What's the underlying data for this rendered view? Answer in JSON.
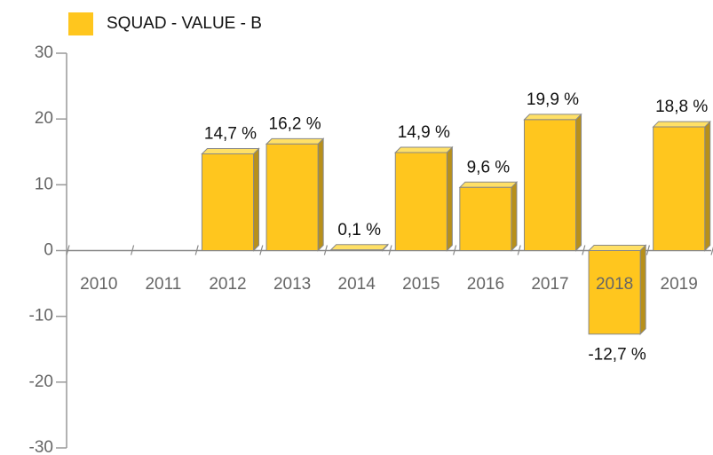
{
  "chart_data": {
    "type": "bar",
    "categories": [
      "2010",
      "2011",
      "2012",
      "2013",
      "2014",
      "2015",
      "2016",
      "2017",
      "2018",
      "2019"
    ],
    "series": [
      {
        "name": "SQUAD - VALUE - B",
        "color": "#ffc61e",
        "values": [
          null,
          null,
          14.7,
          16.2,
          0.1,
          14.9,
          9.6,
          19.9,
          -12.7,
          18.8
        ],
        "value_labels": [
          null,
          null,
          "14,7 %",
          "16,2 %",
          "0,1 %",
          "14,9 %",
          "9,6 %",
          "19,9 %",
          "-12,7 %",
          "18,8 %"
        ]
      }
    ],
    "ylim": [
      -30,
      30
    ],
    "yticks": [
      -30,
      -20,
      -10,
      0,
      10,
      20,
      30
    ],
    "legend": "top-left"
  }
}
